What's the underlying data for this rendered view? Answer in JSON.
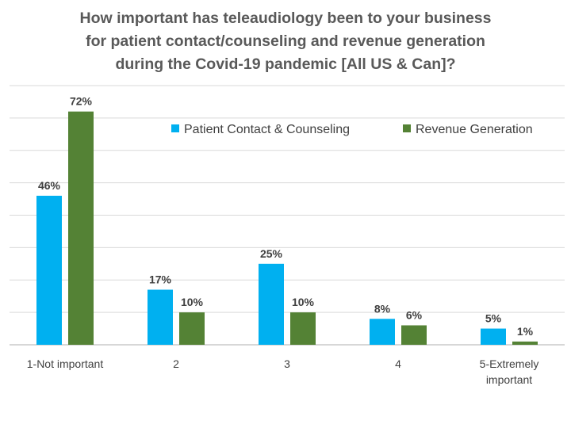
{
  "chart_data": {
    "type": "bar",
    "title_lines": [
      "How important has teleaudiology been to your business",
      "for patient contact/counseling and revenue generation",
      "during the Covid-19 pandemic [All US & Can]?"
    ],
    "categories": [
      [
        "1-Not important"
      ],
      [
        "2"
      ],
      [
        "3"
      ],
      [
        "4"
      ],
      [
        "5-Extremely",
        "important"
      ]
    ],
    "series": [
      {
        "name": "Patient Contact & Counseling",
        "color": "#00b0f0",
        "values": [
          46,
          17,
          25,
          8,
          5
        ],
        "labels": [
          "46%",
          "17%",
          "25%",
          "8%",
          "5%"
        ]
      },
      {
        "name": "Revenue Generation",
        "color": "#548235",
        "values": [
          72,
          10,
          10,
          6,
          1
        ],
        "labels": [
          "72%",
          "10%",
          "10%",
          "6%",
          "1%"
        ]
      }
    ],
    "ylim": [
      0,
      80
    ],
    "grid": true,
    "legend_position": "top-right",
    "xlabel": "",
    "ylabel": ""
  }
}
